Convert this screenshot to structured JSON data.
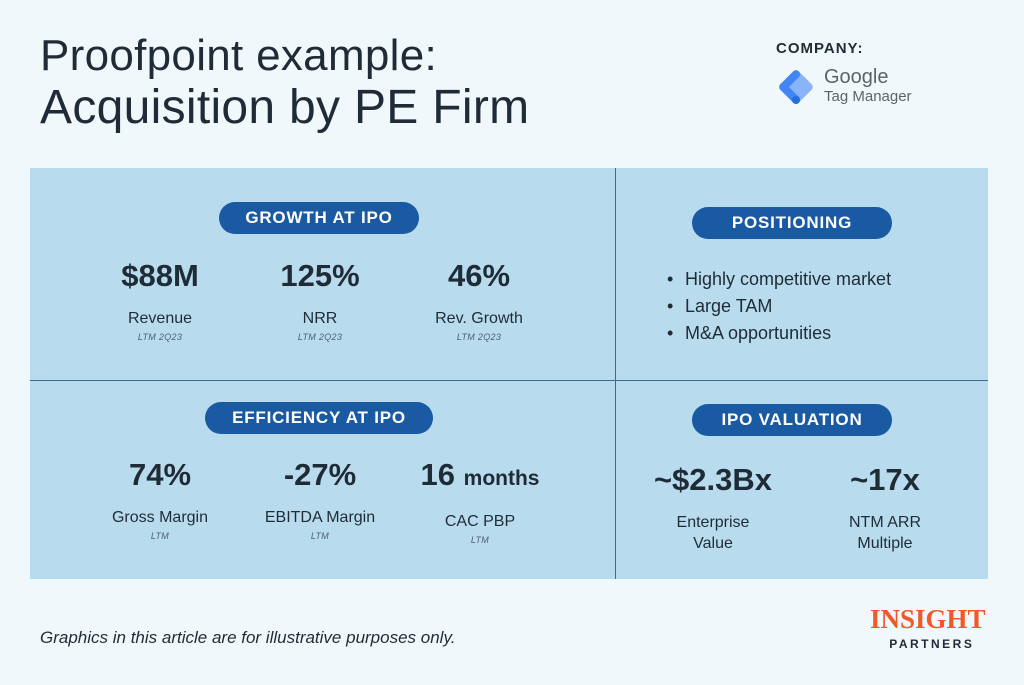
{
  "header": {
    "title_line1": "Proofpoint example:",
    "title_line2": "Acquisition by PE Firm"
  },
  "company": {
    "label": "COMPANY:",
    "logo_name": "Google",
    "logo_product": "Tag Manager",
    "logo_icon": "google-tag-manager-icon"
  },
  "growth": {
    "heading": "GROWTH AT IPO",
    "metrics": [
      {
        "value": "$88M",
        "label": "Revenue",
        "sub": "LTM 2Q23"
      },
      {
        "value": "125%",
        "label": "NRR",
        "sub": "LTM 2Q23"
      },
      {
        "value": "46%",
        "label": "Rev. Growth",
        "sub": "LTM 2Q23"
      }
    ]
  },
  "positioning": {
    "heading": "POSITIONING",
    "bullet": "•",
    "items": [
      "Highly competitive market",
      "Large TAM",
      "M&A opportunities"
    ]
  },
  "efficiency": {
    "heading": "EFFICIENCY AT IPO",
    "metrics": [
      {
        "value": "74%",
        "label": "Gross Margin",
        "sub": "LTM"
      },
      {
        "value": "-27%",
        "label": "EBITDA Margin",
        "sub": "LTM"
      },
      {
        "value": "16",
        "unit": "months",
        "label": "CAC PBP",
        "sub": "LTM"
      }
    ]
  },
  "valuation": {
    "heading": "IPO VALUATION",
    "metrics": [
      {
        "value": "~$2.3Bx",
        "label_line1": "Enterprise",
        "label_line2": "Value"
      },
      {
        "value": "~17x",
        "label_line1": "NTM ARR",
        "label_line2": "Multiple"
      }
    ]
  },
  "footer": {
    "disclaimer": "Graphics in this article are for illustrative purposes only.",
    "brand_main": "INSIGHT",
    "brand_sub": "PARTNERS"
  },
  "colors": {
    "background": "#f1f8fc",
    "panel": "#b8dcee",
    "pill": "#1a5aa3",
    "brand_orange": "#f05a28",
    "divider": "#3e6a93"
  }
}
